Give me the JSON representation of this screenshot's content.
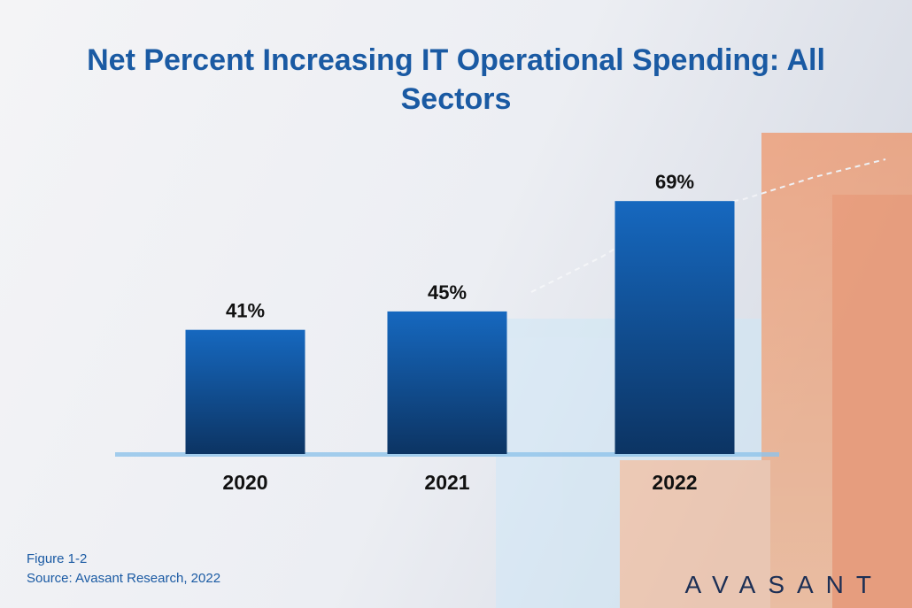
{
  "chart_data": {
    "type": "bar",
    "title": "Net Percent Increasing IT Operational Spending: All Sectors",
    "categories": [
      "2020",
      "2021",
      "2022"
    ],
    "values": [
      41,
      45,
      69
    ],
    "value_labels": [
      "41%",
      "45%",
      "69%"
    ],
    "color": "#1668bf",
    "ylim": [
      14,
      75
    ]
  },
  "footer": {
    "figure": "Figure 1-2",
    "source": "Source: Avasant Research, 2022"
  },
  "logo": "AVASANT"
}
